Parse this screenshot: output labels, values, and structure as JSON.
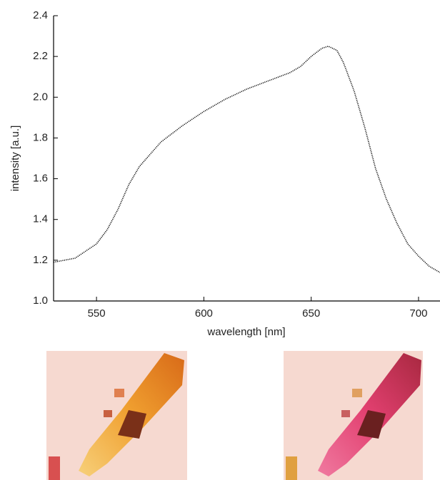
{
  "chart_data": {
    "type": "line",
    "x_label": "wavelength [nm]",
    "y_label": "intensity [a.u.]",
    "x": [
      530,
      540,
      550,
      555,
      560,
      565,
      570,
      580,
      590,
      600,
      610,
      620,
      630,
      640,
      645,
      650,
      655,
      658,
      662,
      665,
      670,
      675,
      680,
      685,
      690,
      695,
      700,
      705,
      710
    ],
    "values": [
      1.19,
      1.21,
      1.28,
      1.35,
      1.45,
      1.57,
      1.66,
      1.78,
      1.86,
      1.93,
      1.99,
      2.04,
      2.08,
      2.12,
      2.15,
      2.2,
      2.24,
      2.25,
      2.23,
      2.17,
      2.03,
      1.85,
      1.65,
      1.5,
      1.38,
      1.28,
      1.22,
      1.17,
      1.14
    ],
    "color": "#111111",
    "xlim": [
      530,
      710
    ],
    "xticks": [
      550,
      600,
      650,
      700
    ],
    "ylim": [
      1,
      2.4
    ],
    "yticks": [
      {
        "value": 1,
        "label": "1.0"
      },
      1.2,
      1.4,
      1.6,
      1.8,
      {
        "value": 2,
        "label": "2.0"
      },
      2.2,
      2.4
    ]
  }
}
